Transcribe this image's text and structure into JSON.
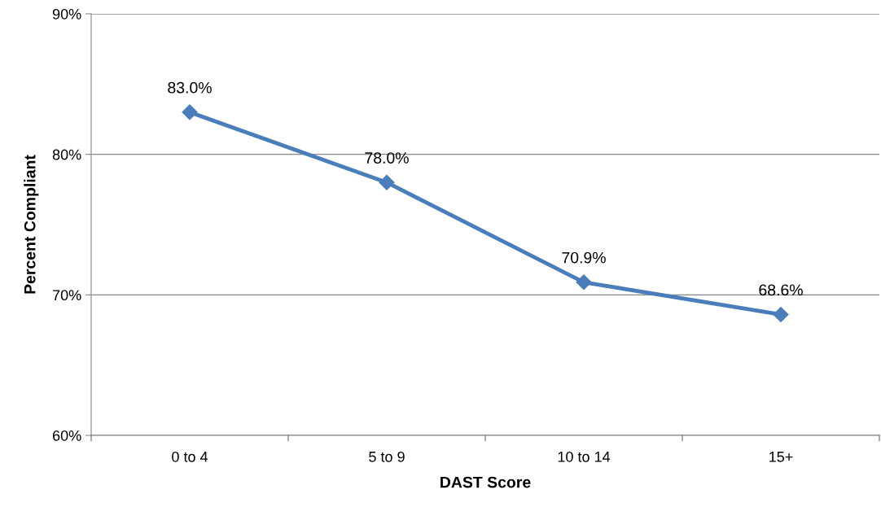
{
  "chart_data": {
    "type": "line",
    "xlabel": "DAST Score",
    "ylabel": "Percent Compliant",
    "categories": [
      "0 to 4",
      "5 to 9",
      "10 to 14",
      "15+"
    ],
    "series": [
      {
        "color": "#4a7ebb",
        "values": [
          83.0,
          78.0,
          70.9,
          68.6
        ],
        "value_labels": [
          "83.0%",
          "78.0%",
          "70.9%",
          "68.6%"
        ]
      }
    ],
    "ylim": [
      60,
      90
    ],
    "yticks": [
      {
        "value": 60,
        "label": "60%"
      },
      {
        "value": 70,
        "label": "70%"
      },
      {
        "value": 80,
        "label": "80%"
      },
      {
        "value": 90,
        "label": "90%"
      }
    ],
    "grid": "y",
    "marker": "diamond",
    "line_style": "solid",
    "legend": false
  }
}
